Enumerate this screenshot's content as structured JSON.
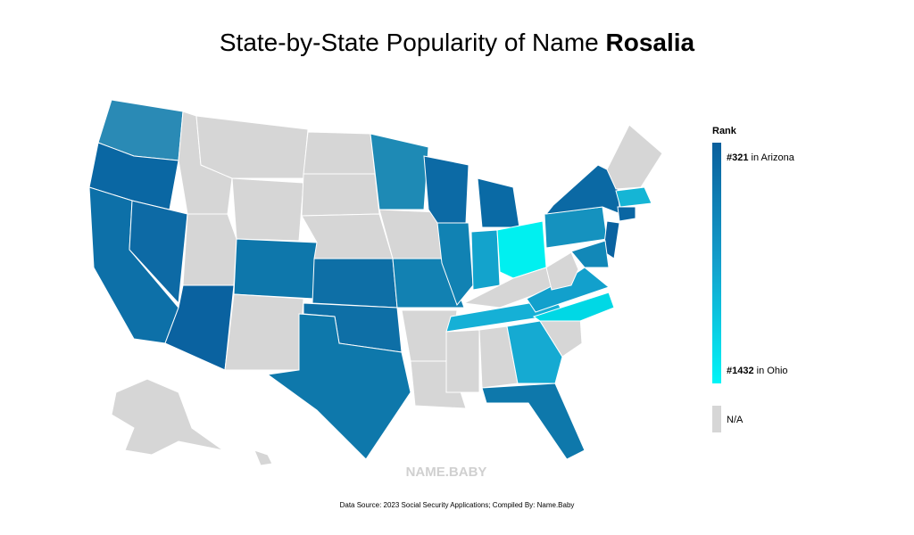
{
  "header": {
    "title_prefix": "State-by-State Popularity of Name",
    "name": "Rosalia"
  },
  "legend": {
    "title": "Rank",
    "top": {
      "rank": "#321",
      "text": "in Arizona"
    },
    "bottom": {
      "rank": "#1432",
      "text": "in Ohio"
    },
    "na": "N/A"
  },
  "watermark": "NAME.BABY",
  "footer": {
    "source": "Data Source: 2023 Social Security Applications; Compiled By: Name.Baby"
  }
}
